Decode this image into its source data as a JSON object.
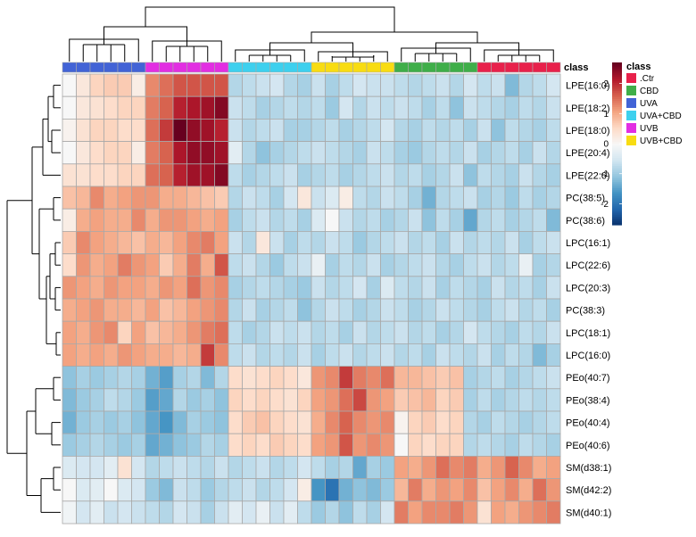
{
  "chart_data": {
    "type": "heatmap",
    "annotation_label": "class",
    "legend": {
      "title": "class",
      "entries": [
        {
          "name": ".Ctr",
          "color": "#e8214b"
        },
        {
          "name": "CBD",
          "color": "#3fae49"
        },
        {
          "name": "UVA",
          "color": "#4263d6"
        },
        {
          "name": "UVA+CBD",
          "color": "#3ed0ee"
        },
        {
          "name": "UVB",
          "color": "#e22ee2"
        },
        {
          "name": "UVB+CBD",
          "color": "#f8dc12"
        }
      ]
    },
    "colorbar": {
      "ticks": [
        2,
        1,
        0,
        -1,
        -2
      ],
      "range": [
        -2.7,
        2.7
      ],
      "colors": [
        "#08306b",
        "#2166ac",
        "#4393c3",
        "#92c5de",
        "#d1e5f0",
        "#f7f7f7",
        "#fddbc7",
        "#f4a582",
        "#d6604d",
        "#b2182b",
        "#67001f"
      ]
    },
    "rows": [
      "LPE(16:0)",
      "LPE(18:2)",
      "LPE(18:0)",
      "LPE(20:4)",
      "LPE(22:6)",
      "PC(38:5)",
      "PC(38:6)",
      "LPC(16:1)",
      "LPC(22:6)",
      "LPC(20:3)",
      "PC(38:3)",
      "LPC(18:1)",
      "LPC(16:0)",
      "PEo(40:7)",
      "PEo(38:4)",
      "PEo(40:4)",
      "PEo(40:6)",
      "SM(d38:1)",
      "SM(d42:2)",
      "SM(d40:1)"
    ],
    "column_classes": [
      "UVA",
      "UVA",
      "UVA",
      "UVA",
      "UVA",
      "UVA",
      "UVB",
      "UVB",
      "UVB",
      "UVB",
      "UVB",
      "UVB",
      "UVA+CBD",
      "UVA+CBD",
      "UVA+CBD",
      "UVA+CBD",
      "UVA+CBD",
      "UVA+CBD",
      "UVB+CBD",
      "UVB+CBD",
      "UVB+CBD",
      "UVB+CBD",
      "UVB+CBD",
      "UVB+CBD",
      "CBD",
      "CBD",
      "CBD",
      "CBD",
      "CBD",
      "CBD",
      ".Ctr",
      ".Ctr",
      ".Ctr",
      ".Ctr",
      ".Ctr",
      ".Ctr"
    ],
    "values": [
      [
        0.0,
        0.3,
        0.6,
        0.7,
        0.7,
        0.2,
        1.3,
        1.5,
        1.7,
        1.7,
        1.7,
        1.7,
        -0.8,
        -0.7,
        -0.6,
        -0.5,
        -0.8,
        -0.9,
        -0.6,
        -0.9,
        -0.7,
        -0.5,
        -0.6,
        -0.6,
        -0.7,
        -0.8,
        -0.7,
        -0.6,
        -0.8,
        -0.5,
        -0.7,
        -0.6,
        -1.2,
        -0.8,
        -0.7,
        -0.5
      ],
      [
        0.0,
        0.3,
        0.4,
        0.5,
        0.6,
        0.6,
        1.4,
        1.6,
        2.1,
        2.2,
        2.3,
        2.5,
        -0.6,
        -0.7,
        -0.9,
        -0.8,
        -0.7,
        -0.8,
        -0.7,
        -1.0,
        -0.5,
        -0.8,
        -0.6,
        -0.7,
        -0.6,
        -0.7,
        -0.9,
        -0.7,
        -1.1,
        -0.6,
        -0.7,
        -0.8,
        -0.9,
        -0.7,
        -0.8,
        -0.6
      ],
      [
        0.1,
        0.4,
        0.6,
        0.6,
        0.5,
        0.5,
        1.5,
        1.9,
        2.7,
        2.4,
        2.3,
        2.1,
        -0.6,
        -0.8,
        -0.7,
        -0.6,
        -0.9,
        -0.9,
        -0.8,
        -0.7,
        -0.9,
        -0.8,
        -0.7,
        -0.5,
        -0.8,
        -0.9,
        -0.7,
        -0.8,
        -0.7,
        -0.9,
        -0.6,
        -1.1,
        -0.7,
        -0.8,
        -0.9,
        -0.7
      ],
      [
        0.0,
        0.3,
        0.5,
        0.6,
        0.6,
        0.2,
        1.4,
        1.6,
        2.2,
        2.4,
        2.4,
        2.3,
        -0.3,
        -0.8,
        -1.1,
        -0.9,
        -0.8,
        -0.7,
        -0.6,
        -0.7,
        -0.8,
        -0.9,
        -0.6,
        -0.7,
        -0.9,
        -1.0,
        -0.8,
        -0.7,
        -0.8,
        -0.6,
        -0.9,
        -0.8,
        -0.7,
        -0.9,
        -0.6,
        -0.8
      ],
      [
        0.4,
        0.4,
        0.5,
        0.5,
        0.6,
        0.6,
        1.5,
        1.6,
        2.1,
        2.3,
        2.3,
        2.5,
        -0.7,
        -0.9,
        -0.8,
        -0.7,
        -0.6,
        -0.9,
        -0.8,
        -0.7,
        -0.9,
        -0.8,
        -0.7,
        -0.6,
        -0.8,
        -0.7,
        -0.9,
        -0.8,
        -0.6,
        -1.1,
        -0.7,
        -0.8,
        -0.9,
        -0.6,
        -0.8,
        -0.9
      ],
      [
        0.8,
        0.9,
        1.3,
        1.0,
        1.1,
        1.2,
        1.2,
        1.0,
        1.0,
        0.9,
        0.8,
        0.7,
        -0.8,
        -0.6,
        -0.7,
        -0.9,
        -0.5,
        0.3,
        -0.6,
        -0.4,
        0.2,
        -0.7,
        -0.8,
        -0.6,
        -0.7,
        -0.9,
        -1.3,
        -0.8,
        -0.7,
        -0.6,
        -0.9,
        -0.8,
        -1.0,
        -0.7,
        -0.9,
        -0.8
      ],
      [
        0.2,
        1.0,
        1.1,
        1.0,
        1.0,
        1.3,
        1.0,
        1.2,
        1.2,
        1.1,
        1.0,
        1.1,
        -0.9,
        -0.7,
        -0.6,
        -0.8,
        -0.7,
        -0.9,
        -0.4,
        0.0,
        -0.6,
        -0.8,
        -0.7,
        -0.9,
        -0.8,
        -0.6,
        -1.1,
        -0.7,
        -0.9,
        -1.4,
        -0.8,
        -0.7,
        -0.9,
        -0.8,
        -0.7,
        -1.2
      ],
      [
        0.7,
        1.3,
        1.1,
        1.0,
        0.9,
        0.8,
        1.0,
        0.9,
        1.1,
        1.3,
        1.4,
        1.1,
        -0.6,
        -0.8,
        0.3,
        -0.6,
        -0.9,
        -0.7,
        -0.8,
        -0.6,
        -0.7,
        -1.0,
        -0.8,
        -0.7,
        -0.6,
        -0.8,
        -0.7,
        -0.9,
        -0.6,
        -0.8,
        -0.7,
        -0.8,
        -0.6,
        -0.9,
        -0.7,
        -0.6
      ],
      [
        0.5,
        1.2,
        1.0,
        1.1,
        1.4,
        1.2,
        1.1,
        0.7,
        1.0,
        1.4,
        1.0,
        1.7,
        -0.7,
        -0.6,
        -0.8,
        -1.0,
        -0.7,
        -0.6,
        -0.2,
        -0.9,
        -0.7,
        -0.8,
        -0.6,
        -0.9,
        -0.8,
        -0.7,
        -0.6,
        -0.8,
        -0.9,
        -0.7,
        -0.6,
        -0.8,
        -0.7,
        -0.2,
        -0.9,
        -0.8
      ],
      [
        1.2,
        1.1,
        1.0,
        1.2,
        1.1,
        1.1,
        1.0,
        1.2,
        1.1,
        1.5,
        1.2,
        1.3,
        -0.9,
        -0.8,
        -0.7,
        -0.8,
        -0.9,
        -1.0,
        -0.6,
        -0.8,
        -0.7,
        -0.5,
        -0.9,
        -0.4,
        -0.7,
        -0.8,
        -0.6,
        -0.9,
        -0.7,
        -0.8,
        -0.9,
        -0.6,
        -0.8,
        -0.7,
        -0.9,
        -0.6
      ],
      [
        1.0,
        1.1,
        1.2,
        1.0,
        1.0,
        0.9,
        1.1,
        0.8,
        0.9,
        1.1,
        1.2,
        1.3,
        -0.8,
        -0.6,
        -0.9,
        -0.8,
        -0.7,
        -1.1,
        -0.8,
        -0.6,
        -0.7,
        -0.9,
        -0.8,
        -0.6,
        -0.7,
        -0.9,
        -0.8,
        -0.6,
        -0.7,
        -0.8,
        -0.9,
        -0.7,
        -0.6,
        -0.8,
        -0.7,
        -0.9
      ],
      [
        1.1,
        1.0,
        1.2,
        1.3,
        0.6,
        1.1,
        0.8,
        0.9,
        1.0,
        1.2,
        1.4,
        1.5,
        -0.7,
        -0.9,
        -0.8,
        -0.6,
        -0.7,
        -0.6,
        -0.8,
        -0.7,
        -0.9,
        -0.6,
        -0.8,
        -0.7,
        -0.6,
        -0.8,
        -0.7,
        -0.9,
        -0.8,
        -0.5,
        -0.7,
        -0.8,
        -0.9,
        -0.7,
        -0.8,
        -0.6
      ],
      [
        1.1,
        1.0,
        1.1,
        1.0,
        1.2,
        1.1,
        1.0,
        1.0,
        0.9,
        1.0,
        1.9,
        1.3,
        -0.7,
        -0.6,
        -0.8,
        -0.7,
        -0.8,
        -0.6,
        -0.9,
        -0.7,
        -0.6,
        -0.8,
        -0.7,
        -0.6,
        -0.8,
        -0.7,
        -0.9,
        -0.6,
        -0.7,
        -0.8,
        -0.6,
        -0.9,
        -0.7,
        -0.8,
        -1.2,
        -0.9
      ],
      [
        -1.1,
        -0.9,
        -1.0,
        -0.9,
        -0.8,
        -0.9,
        -1.3,
        -1.5,
        -0.9,
        -0.8,
        -1.2,
        -0.8,
        0.5,
        0.4,
        0.5,
        0.6,
        0.5,
        0.3,
        1.2,
        1.3,
        1.9,
        1.4,
        1.3,
        1.5,
        0.9,
        0.9,
        0.8,
        0.7,
        0.8,
        -0.9,
        -0.8,
        -0.7,
        -0.9,
        -0.8,
        -0.7,
        -0.6
      ],
      [
        -1.2,
        -1.0,
        -0.9,
        -0.7,
        -0.8,
        -1.0,
        -1.5,
        -1.4,
        -0.8,
        -1.0,
        -0.9,
        -1.1,
        0.6,
        0.5,
        0.6,
        0.5,
        0.4,
        0.6,
        1.1,
        1.2,
        1.5,
        1.8,
        1.2,
        1.1,
        0.7,
        0.8,
        0.9,
        0.6,
        0.7,
        -0.9,
        -0.7,
        -0.9,
        -0.8,
        -0.7,
        -0.8,
        -0.7
      ],
      [
        -1.3,
        -1.0,
        -0.9,
        -1.0,
        -0.9,
        -1.1,
        -1.4,
        -1.6,
        -1.2,
        -0.9,
        -1.0,
        -1.1,
        0.5,
        0.7,
        0.8,
        0.6,
        0.5,
        0.4,
        1.0,
        1.3,
        1.6,
        1.3,
        1.2,
        1.3,
        0.1,
        0.6,
        0.7,
        0.5,
        0.6,
        -0.8,
        -0.9,
        -0.7,
        -0.8,
        -0.9,
        -0.8,
        -0.7
      ],
      [
        -1.0,
        -0.9,
        -0.8,
        -0.9,
        -1.0,
        -0.9,
        -1.4,
        -1.3,
        -1.1,
        -1.0,
        -0.8,
        -0.9,
        0.5,
        0.6,
        0.5,
        0.7,
        0.6,
        0.5,
        1.1,
        1.2,
        1.7,
        1.2,
        1.3,
        1.2,
        0.0,
        0.6,
        0.5,
        0.6,
        0.6,
        -0.8,
        -0.7,
        -0.8,
        -0.9,
        -0.7,
        -0.8,
        -0.9
      ],
      [
        -0.4,
        -0.5,
        -0.5,
        -0.3,
        0.4,
        -0.5,
        -0.8,
        -0.7,
        -0.6,
        -0.7,
        -0.8,
        -0.6,
        -0.8,
        -0.7,
        -0.6,
        -0.8,
        -0.7,
        -0.5,
        -0.7,
        -0.9,
        -0.8,
        -1.4,
        -0.9,
        -1.0,
        1.1,
        1.0,
        1.2,
        1.5,
        1.3,
        1.4,
        1.0,
        1.2,
        1.6,
        1.3,
        1.0,
        1.1
      ],
      [
        0.0,
        -0.4,
        -0.3,
        0.0,
        -0.4,
        -0.5,
        -1.0,
        -1.2,
        -0.6,
        -0.7,
        -1.0,
        -0.8,
        -0.7,
        -0.6,
        -0.8,
        -0.7,
        -0.5,
        0.2,
        -1.6,
        -2.0,
        -1.3,
        -1.1,
        -1.2,
        -1.0,
        0.9,
        1.4,
        1.0,
        1.2,
        1.1,
        1.3,
        0.8,
        1.1,
        1.3,
        1.0,
        1.5,
        1.2
      ],
      [
        -0.1,
        -0.5,
        -0.3,
        -0.6,
        -0.5,
        -0.6,
        -0.7,
        -0.8,
        -0.5,
        -0.6,
        -0.9,
        -0.6,
        -0.3,
        -0.5,
        -0.2,
        -0.6,
        -0.3,
        -0.7,
        -1.0,
        -0.8,
        -1.1,
        -0.7,
        -0.9,
        -0.5,
        1.4,
        1.1,
        1.3,
        1.3,
        1.4,
        1.2,
        0.4,
        1.1,
        1.0,
        1.2,
        1.3,
        1.4
      ]
    ]
  }
}
